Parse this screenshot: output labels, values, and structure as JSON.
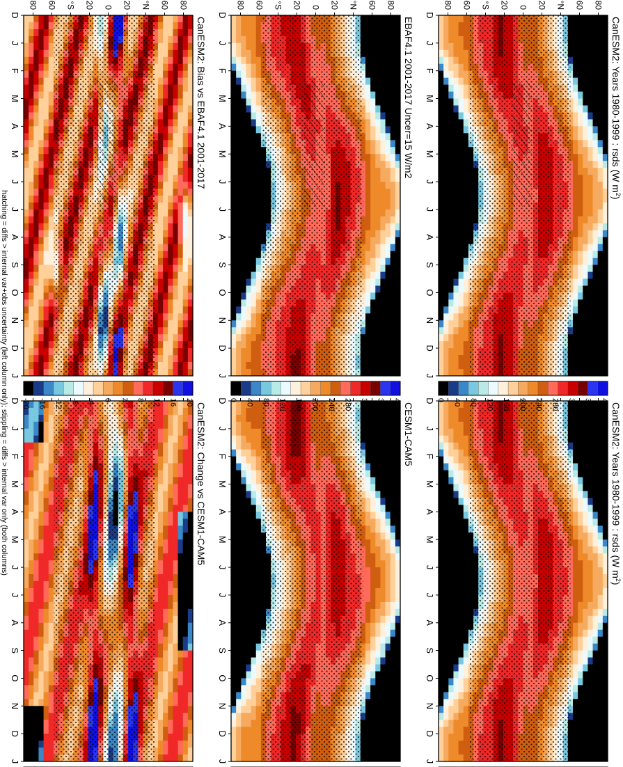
{
  "footnote": "hatching = diffs > internal var+obs uncertainty (left column only); stippling = diffs > internal var only (both columns)",
  "months": [
    "D",
    "J",
    "F",
    "M",
    "A",
    "M",
    "J",
    "J",
    "A",
    "S",
    "O",
    "N",
    "D",
    "J"
  ],
  "lat_ticks": [
    "80",
    "60",
    "°N",
    "20",
    "0",
    "20",
    "°S",
    "60",
    "80"
  ],
  "colorbars": {
    "absolute": {
      "labels": [
        "400",
        "360",
        "320",
        "280",
        "240",
        "200",
        "160",
        "120",
        "80",
        "40",
        "0"
      ],
      "colors": [
        "#1010e0",
        "#2a35f0",
        "#7a0000",
        "#c80000",
        "#f02828",
        "#ff6a5a",
        "#d05e10",
        "#ee8a2a",
        "#f5aa60",
        "#ffd09a",
        "#fff0dc",
        "#eafaff",
        "#b8eae8",
        "#78c8e0",
        "#3a88c8",
        "#1a3c88",
        "#000000"
      ]
    },
    "difference": {
      "labels": [
        "20",
        "16",
        "12",
        "8",
        "4",
        "0",
        "-4",
        "-8",
        "-12",
        "-16",
        "-20"
      ],
      "colors": [
        "#1010e0",
        "#2a35f0",
        "#7a0000",
        "#c80000",
        "#f02828",
        "#ff6a5a",
        "#d05e10",
        "#ee8a2a",
        "#f5aa60",
        "#ffd09a",
        "#fff0dc",
        "#eafaff",
        "#b8eae8",
        "#78c8e0",
        "#3a88c8",
        "#1a3c88",
        "#000000"
      ]
    }
  },
  "panels": {
    "model_left": {
      "title": "CanESM2: Years 1980-1999 : rsds (W m",
      "title_sup": "2",
      "title_end": ")"
    },
    "model_right": {
      "title": "CanESM2: Years 1980-1999 : rsds (W m",
      "title_sup": "2",
      "title_end": ")"
    },
    "obs": {
      "title": "EBAF4.1 2001-2017 Uncer=15 W/m2"
    },
    "ref_model": {
      "title": "CESM1-CAM5"
    },
    "bias": {
      "title": "CanESM2: Bias vs EBAF4.1 2001-2017"
    },
    "change": {
      "title": "CanESM2: Change vs CESM1-CAM5"
    }
  },
  "chart_data": [
    {
      "type": "heatmap",
      "title": "CanESM2: Years 1980-1999 : rsds (W m-2)",
      "x": "month (D..J)",
      "y": "latitude (80N..80S)",
      "zlim": [
        0,
        400
      ],
      "units": "W m-2"
    },
    {
      "type": "heatmap",
      "title": "CanESM2: Years 1980-1999 : rsds (W m-2)",
      "x": "month (D..J)",
      "y": "latitude (80N..80S)",
      "zlim": [
        0,
        400
      ],
      "units": "W m-2"
    },
    {
      "type": "heatmap",
      "title": "EBAF4.1 2001-2017 Uncer=15 W/m2",
      "x": "month (D..J)",
      "y": "latitude (80N..80S)",
      "zlim": [
        0,
        400
      ]
    },
    {
      "type": "heatmap",
      "title": "CESM1-CAM5",
      "x": "month (D..J)",
      "y": "latitude (80N..80S)",
      "zlim": [
        0,
        400
      ]
    },
    {
      "type": "heatmap",
      "title": "CanESM2: Bias vs EBAF4.1 2001-2017",
      "x": "month (D..J)",
      "y": "latitude (80N..80S)",
      "zlim": [
        -20,
        20
      ]
    },
    {
      "type": "heatmap",
      "title": "CanESM2: Change vs CESM1-CAM5",
      "x": "month (D..J)",
      "y": "latitude (80N..80S)",
      "zlim": [
        -20,
        20
      ]
    }
  ]
}
